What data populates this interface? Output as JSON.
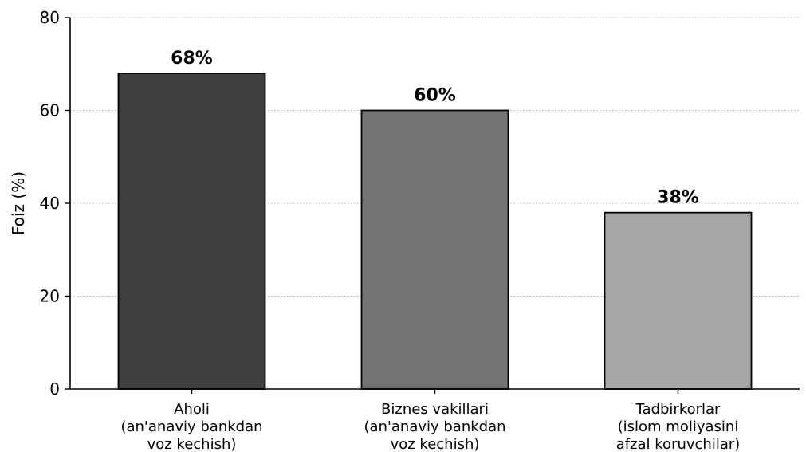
{
  "chart_data": {
    "type": "bar",
    "ylabel": "Foiz (%)",
    "ylim": [
      0,
      80
    ],
    "yticks": [
      0,
      20,
      40,
      60,
      80
    ],
    "grid": "horizontal dotted",
    "categories": [
      [
        "Aholi",
        "(an'anaviy bankdan",
        "voz kechish)"
      ],
      [
        "Biznes vakillari",
        "(an'anaviy bankdan",
        "voz kechish)"
      ],
      [
        "Tadbirkorlar",
        "(islom moliyasini",
        "afzal koruvchilar)"
      ]
    ],
    "values": [
      68,
      60,
      38
    ],
    "data_labels": [
      "68%",
      "60%",
      "38%"
    ],
    "colors": [
      "#404040",
      "#737373",
      "#a6a6a6"
    ],
    "edge_color": "#000000"
  }
}
